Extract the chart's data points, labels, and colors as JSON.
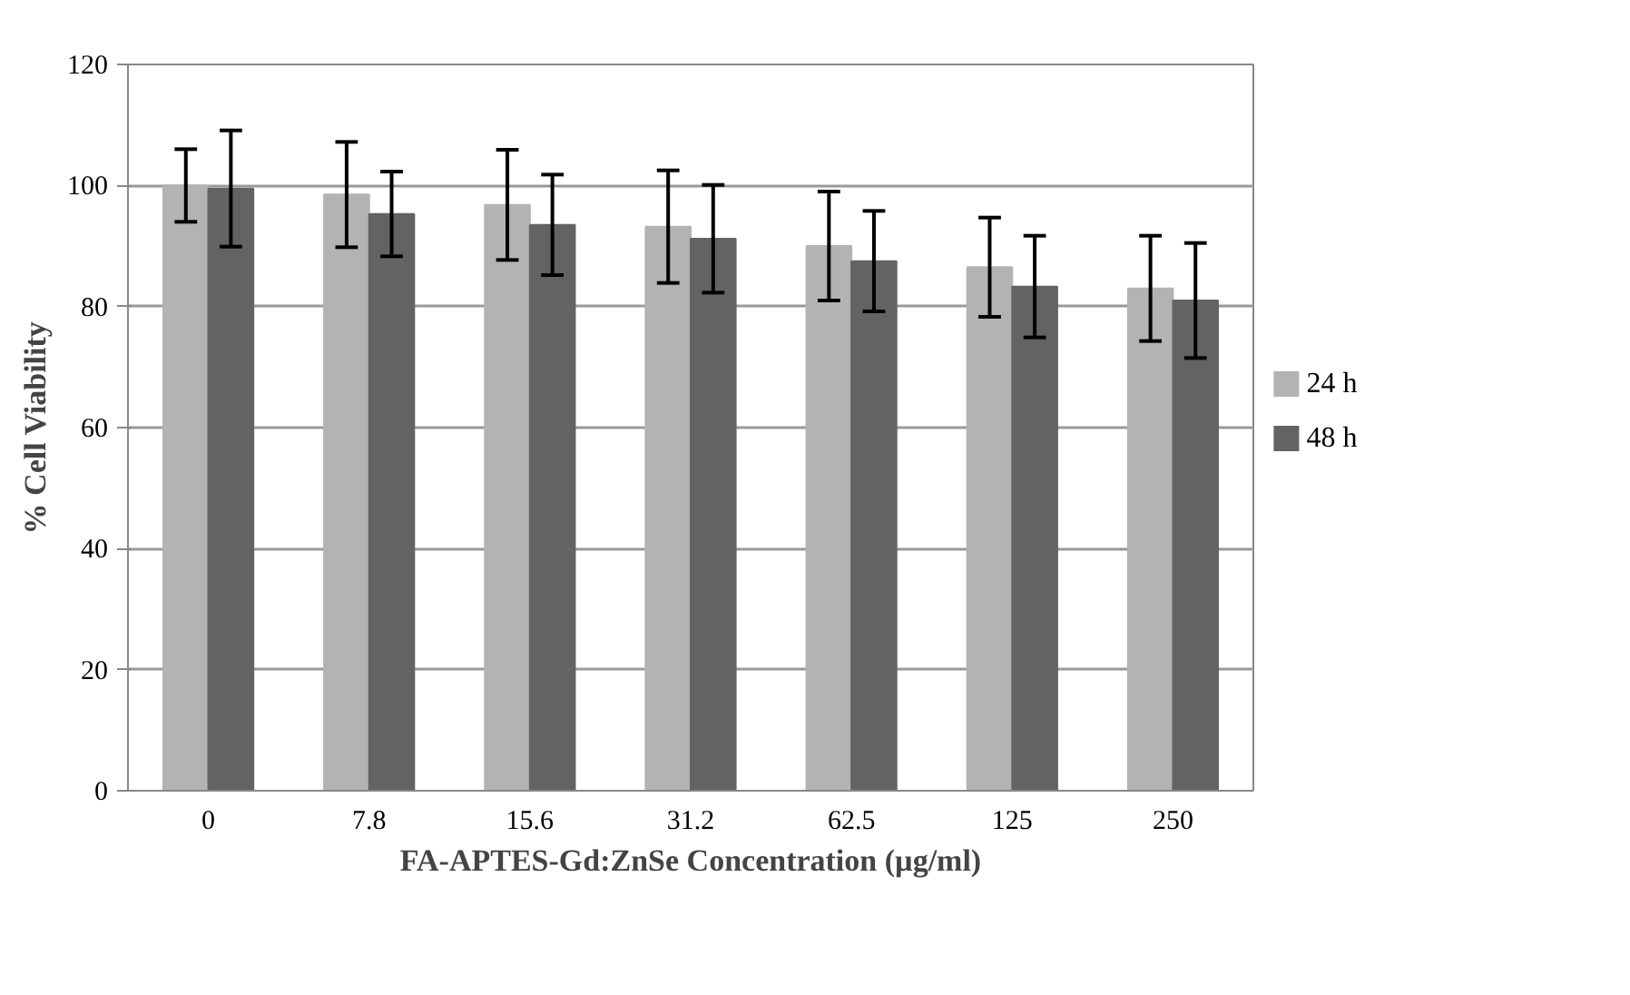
{
  "chart_data": {
    "type": "bar",
    "xlabel": "FA-APTES-Gd:ZnSe Concentration (µg/ml)",
    "ylabel": "% Cell Viability",
    "categories": [
      "0",
      "7.8",
      "15.6",
      "31.2",
      "62.5",
      "125",
      "250"
    ],
    "series": [
      {
        "name": "24 h",
        "color": "#b3b3b3",
        "values": [
          100,
          98.5,
          96.8,
          93.2,
          90,
          86.5,
          83
        ],
        "errors": [
          6,
          8.7,
          9.1,
          9.3,
          9,
          8.2,
          8.7
        ]
      },
      {
        "name": "48 h",
        "color": "#636363",
        "values": [
          99.5,
          95.3,
          93.5,
          91.2,
          87.5,
          83.3,
          81
        ],
        "errors": [
          9.6,
          7,
          8.3,
          8.9,
          8.3,
          8.4,
          9.5
        ]
      }
    ],
    "ylim": [
      0,
      120
    ],
    "yticks": [
      0,
      20,
      40,
      60,
      80,
      100,
      120
    ],
    "grid": "y",
    "legend": "right"
  }
}
